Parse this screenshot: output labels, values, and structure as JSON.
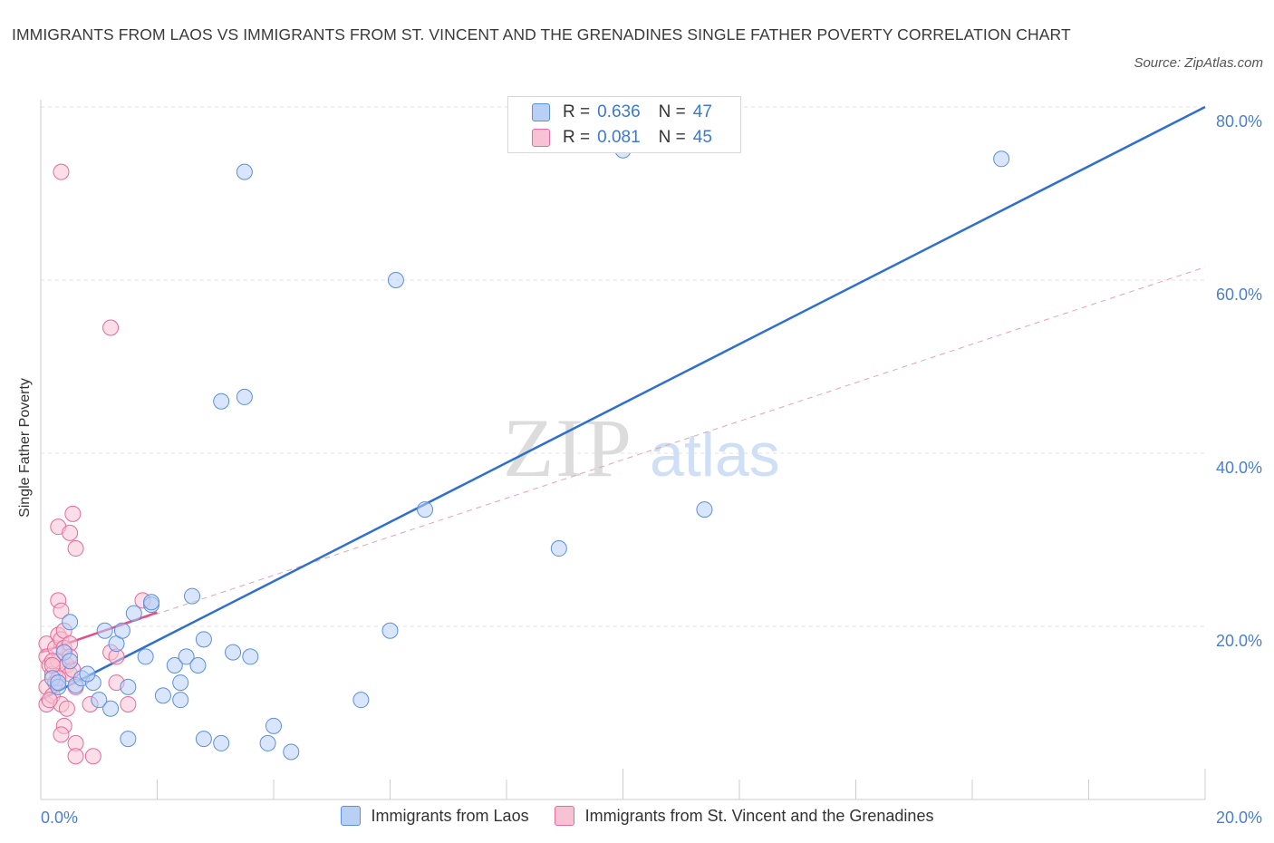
{
  "chart_data": {
    "type": "scatter",
    "title": "IMMIGRANTS FROM LAOS VS IMMIGRANTS FROM ST. VINCENT AND THE GRENADINES SINGLE FATHER POVERTY CORRELATION CHART",
    "source": "Source: ZipAtlas.com",
    "xlabel": "",
    "ylabel": "Single Father Poverty",
    "xlim": [
      0,
      20
    ],
    "ylim": [
      0,
      80
    ],
    "x_tick_labels": [
      "0.0%",
      "20.0%"
    ],
    "y_tick_labels": [
      "20.0%",
      "40.0%",
      "60.0%",
      "80.0%"
    ],
    "y_tick_values": [
      20,
      40,
      60,
      80
    ],
    "grid": true,
    "legend_position": "top-center",
    "series": [
      {
        "name": "Immigrants from Laos",
        "color": "#5b8fe0",
        "fill": "#b9d0f5",
        "R": "0.636",
        "N": "47",
        "trend": {
          "x": [
            0,
            20
          ],
          "y": [
            11.5,
            80.0
          ],
          "style": "solid"
        },
        "points": [
          [
            0.2,
            14.0
          ],
          [
            0.3,
            13.0
          ],
          [
            0.4,
            17.0
          ],
          [
            0.5,
            16.0
          ],
          [
            0.5,
            20.5
          ],
          [
            0.6,
            13.2
          ],
          [
            0.7,
            14.0
          ],
          [
            1.1,
            19.5
          ],
          [
            1.3,
            18.0
          ],
          [
            1.4,
            19.5
          ],
          [
            1.2,
            10.5
          ],
          [
            1.0,
            11.5
          ],
          [
            0.9,
            13.5
          ],
          [
            1.5,
            13.0
          ],
          [
            1.6,
            21.5
          ],
          [
            1.9,
            22.5
          ],
          [
            1.8,
            16.5
          ],
          [
            2.1,
            12.0
          ],
          [
            2.3,
            15.5
          ],
          [
            2.4,
            13.5
          ],
          [
            2.5,
            16.5
          ],
          [
            2.6,
            23.5
          ],
          [
            2.7,
            15.5
          ],
          [
            2.8,
            18.5
          ],
          [
            3.3,
            17.0
          ],
          [
            3.6,
            16.5
          ],
          [
            1.5,
            7.0
          ],
          [
            2.8,
            7.0
          ],
          [
            3.1,
            6.5
          ],
          [
            3.9,
            6.5
          ],
          [
            4.0,
            8.5
          ],
          [
            4.3,
            5.5
          ],
          [
            2.4,
            11.5
          ],
          [
            5.5,
            11.5
          ],
          [
            6.0,
            19.5
          ],
          [
            6.6,
            33.5
          ],
          [
            8.9,
            29.0
          ],
          [
            11.4,
            33.5
          ],
          [
            3.1,
            46.0
          ],
          [
            3.5,
            46.5
          ],
          [
            3.5,
            72.5
          ],
          [
            6.1,
            60.0
          ],
          [
            10.0,
            75.0
          ],
          [
            16.5,
            74.0
          ],
          [
            0.3,
            13.5
          ],
          [
            0.8,
            14.5
          ],
          [
            1.9,
            22.8
          ]
        ]
      },
      {
        "name": "Immigrants from St. Vincent and the Grenadines",
        "color": "#e86a9a",
        "fill": "#f7c3d4",
        "R": "0.081",
        "N": "45",
        "trend": {
          "x": [
            0,
            2.0
          ],
          "y": [
            17.0,
            21.6
          ],
          "style": "solid"
        },
        "trend_ext": {
          "x": [
            0,
            20
          ],
          "y": [
            17.0,
            61.5
          ],
          "style": "dashed"
        },
        "points": [
          [
            0.1,
            18.0
          ],
          [
            0.1,
            16.5
          ],
          [
            0.15,
            15.5
          ],
          [
            0.2,
            14.5
          ],
          [
            0.1,
            13.0
          ],
          [
            0.1,
            11.0
          ],
          [
            0.2,
            12.0
          ],
          [
            0.25,
            17.5
          ],
          [
            0.3,
            16.0
          ],
          [
            0.3,
            19.0
          ],
          [
            0.35,
            18.5
          ],
          [
            0.4,
            17.5
          ],
          [
            0.45,
            15.5
          ],
          [
            0.5,
            14.5
          ],
          [
            0.3,
            23.0
          ],
          [
            0.35,
            21.8
          ],
          [
            0.3,
            31.5
          ],
          [
            0.5,
            30.8
          ],
          [
            0.55,
            33.0
          ],
          [
            0.6,
            29.0
          ],
          [
            0.35,
            11.0
          ],
          [
            0.45,
            10.5
          ],
          [
            0.4,
            8.5
          ],
          [
            0.35,
            7.5
          ],
          [
            0.6,
            6.5
          ],
          [
            0.6,
            5.0
          ],
          [
            0.9,
            5.0
          ],
          [
            0.85,
            11.0
          ],
          [
            1.2,
            17.0
          ],
          [
            1.3,
            16.5
          ],
          [
            1.3,
            13.5
          ],
          [
            1.5,
            11.0
          ],
          [
            1.75,
            23.0
          ],
          [
            0.35,
            72.5
          ],
          [
            1.2,
            54.5
          ],
          [
            0.2,
            16.0
          ],
          [
            0.6,
            13.0
          ],
          [
            0.15,
            11.5
          ],
          [
            0.4,
            19.5
          ],
          [
            0.5,
            18.0
          ],
          [
            0.25,
            13.5
          ],
          [
            0.55,
            15.0
          ],
          [
            0.3,
            14.0
          ],
          [
            0.2,
            15.5
          ],
          [
            0.5,
            16.5
          ]
        ]
      }
    ]
  }
}
